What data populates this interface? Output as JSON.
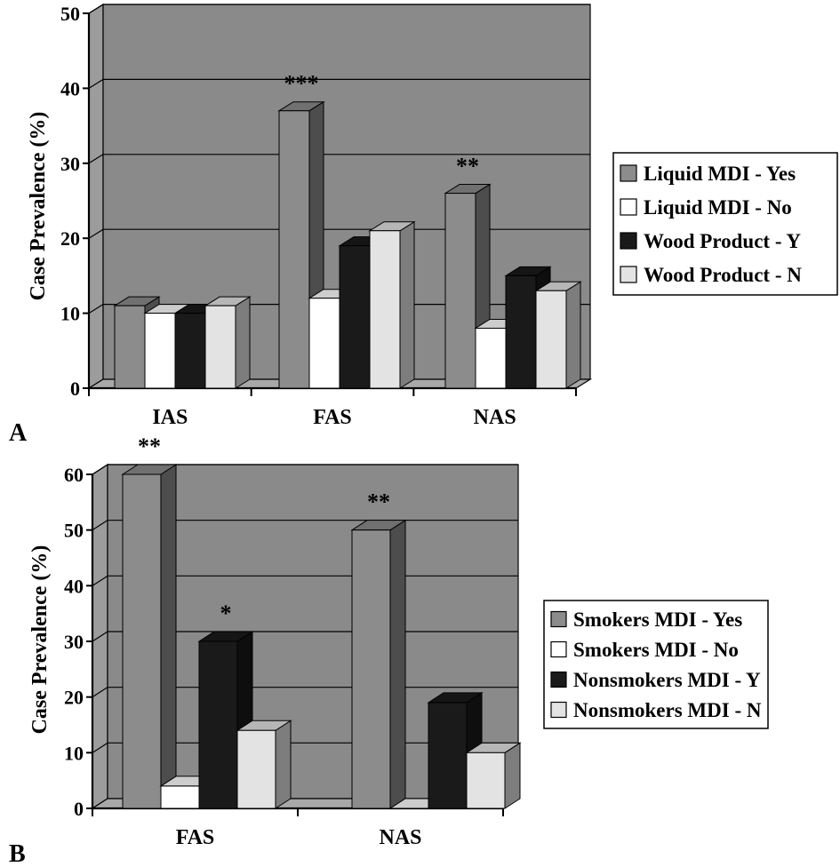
{
  "chart_data": [
    {
      "type": "bar",
      "panel_label": "A",
      "ylabel": "Case Prevalence (%)",
      "xlabel": "",
      "ylim": [
        0,
        50
      ],
      "y_ticks": [
        "0",
        "10",
        "20",
        "30",
        "40",
        "50"
      ],
      "categories": [
        "IAS",
        "FAS",
        "NAS"
      ],
      "series": [
        {
          "name": "Liquid MDI - Yes",
          "values": [
            11,
            37,
            26
          ],
          "color": "#8c8c8c"
        },
        {
          "name": "Liquid MDI - No",
          "values": [
            10,
            12,
            8
          ],
          "color": "#ffffff"
        },
        {
          "name": "Wood Product - Y",
          "values": [
            10,
            19,
            15
          ],
          "color": "#1a1a1a"
        },
        {
          "name": "Wood Product - N",
          "values": [
            11,
            21,
            13
          ],
          "color": "#e3e3e3"
        }
      ],
      "annotations": [
        {
          "text": "***",
          "category": "FAS",
          "series": "Liquid MDI - Yes"
        },
        {
          "text": "**",
          "category": "NAS",
          "series": "Liquid MDI - Yes"
        }
      ],
      "grid": true,
      "legend": "right"
    },
    {
      "type": "bar",
      "panel_label": "B",
      "ylabel": "Case Prevalence (%)",
      "xlabel": "",
      "ylim": [
        0,
        60
      ],
      "y_ticks": [
        "0",
        "10",
        "20",
        "30",
        "40",
        "50",
        "60"
      ],
      "categories": [
        "FAS",
        "NAS"
      ],
      "series": [
        {
          "name": "Smokers MDI - Yes",
          "values": [
            60,
            50
          ],
          "color": "#8c8c8c"
        },
        {
          "name": "Smokers MDI - No",
          "values": [
            4,
            0
          ],
          "color": "#ffffff"
        },
        {
          "name": "Nonsmokers MDI - Y",
          "values": [
            30,
            19
          ],
          "color": "#1a1a1a"
        },
        {
          "name": "Nonsmokers MDI - N",
          "values": [
            14,
            10
          ],
          "color": "#e3e3e3"
        }
      ],
      "annotations": [
        {
          "text": "**",
          "category": "FAS",
          "series": "Smokers MDI - Yes"
        },
        {
          "text": "*",
          "category": "FAS",
          "series": "Nonsmokers MDI - Y"
        },
        {
          "text": "**",
          "category": "NAS",
          "series": "Smokers MDI - Yes"
        }
      ],
      "grid": true,
      "legend": "right"
    }
  ],
  "colors": {
    "plot_back": "#8a8a8a",
    "plot_side": "#9c9c9c",
    "plot_floor": "#a8a8a8",
    "gridline": "#000000"
  }
}
